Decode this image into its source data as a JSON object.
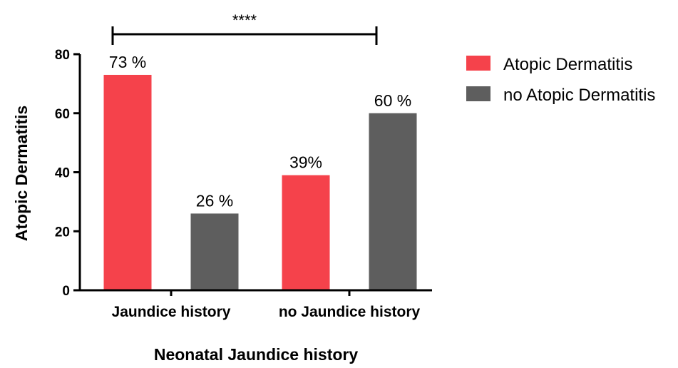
{
  "chart_data": {
    "type": "bar",
    "xlabel": "Neonatal Jaundice history",
    "ylabel": "Atopic Dermatitis",
    "ylim": [
      0,
      80
    ],
    "yticks": [
      0,
      20,
      40,
      60,
      80
    ],
    "categories": [
      "Jaundice history",
      "no Jaundice history"
    ],
    "series": [
      {
        "name": "Atopic Dermatitis",
        "color": "#f5424b",
        "values": [
          73,
          39
        ],
        "labels": [
          "73 %",
          "39%"
        ]
      },
      {
        "name": "no Atopic Dermatitis",
        "color": "#5e5e5e",
        "values": [
          26,
          60
        ],
        "labels": [
          "26 %",
          "60 %"
        ]
      }
    ],
    "significance": {
      "label": "****",
      "between": [
        "Jaundice history",
        "no Jaundice history"
      ]
    },
    "legend_position": "top-right",
    "grid": false
  }
}
